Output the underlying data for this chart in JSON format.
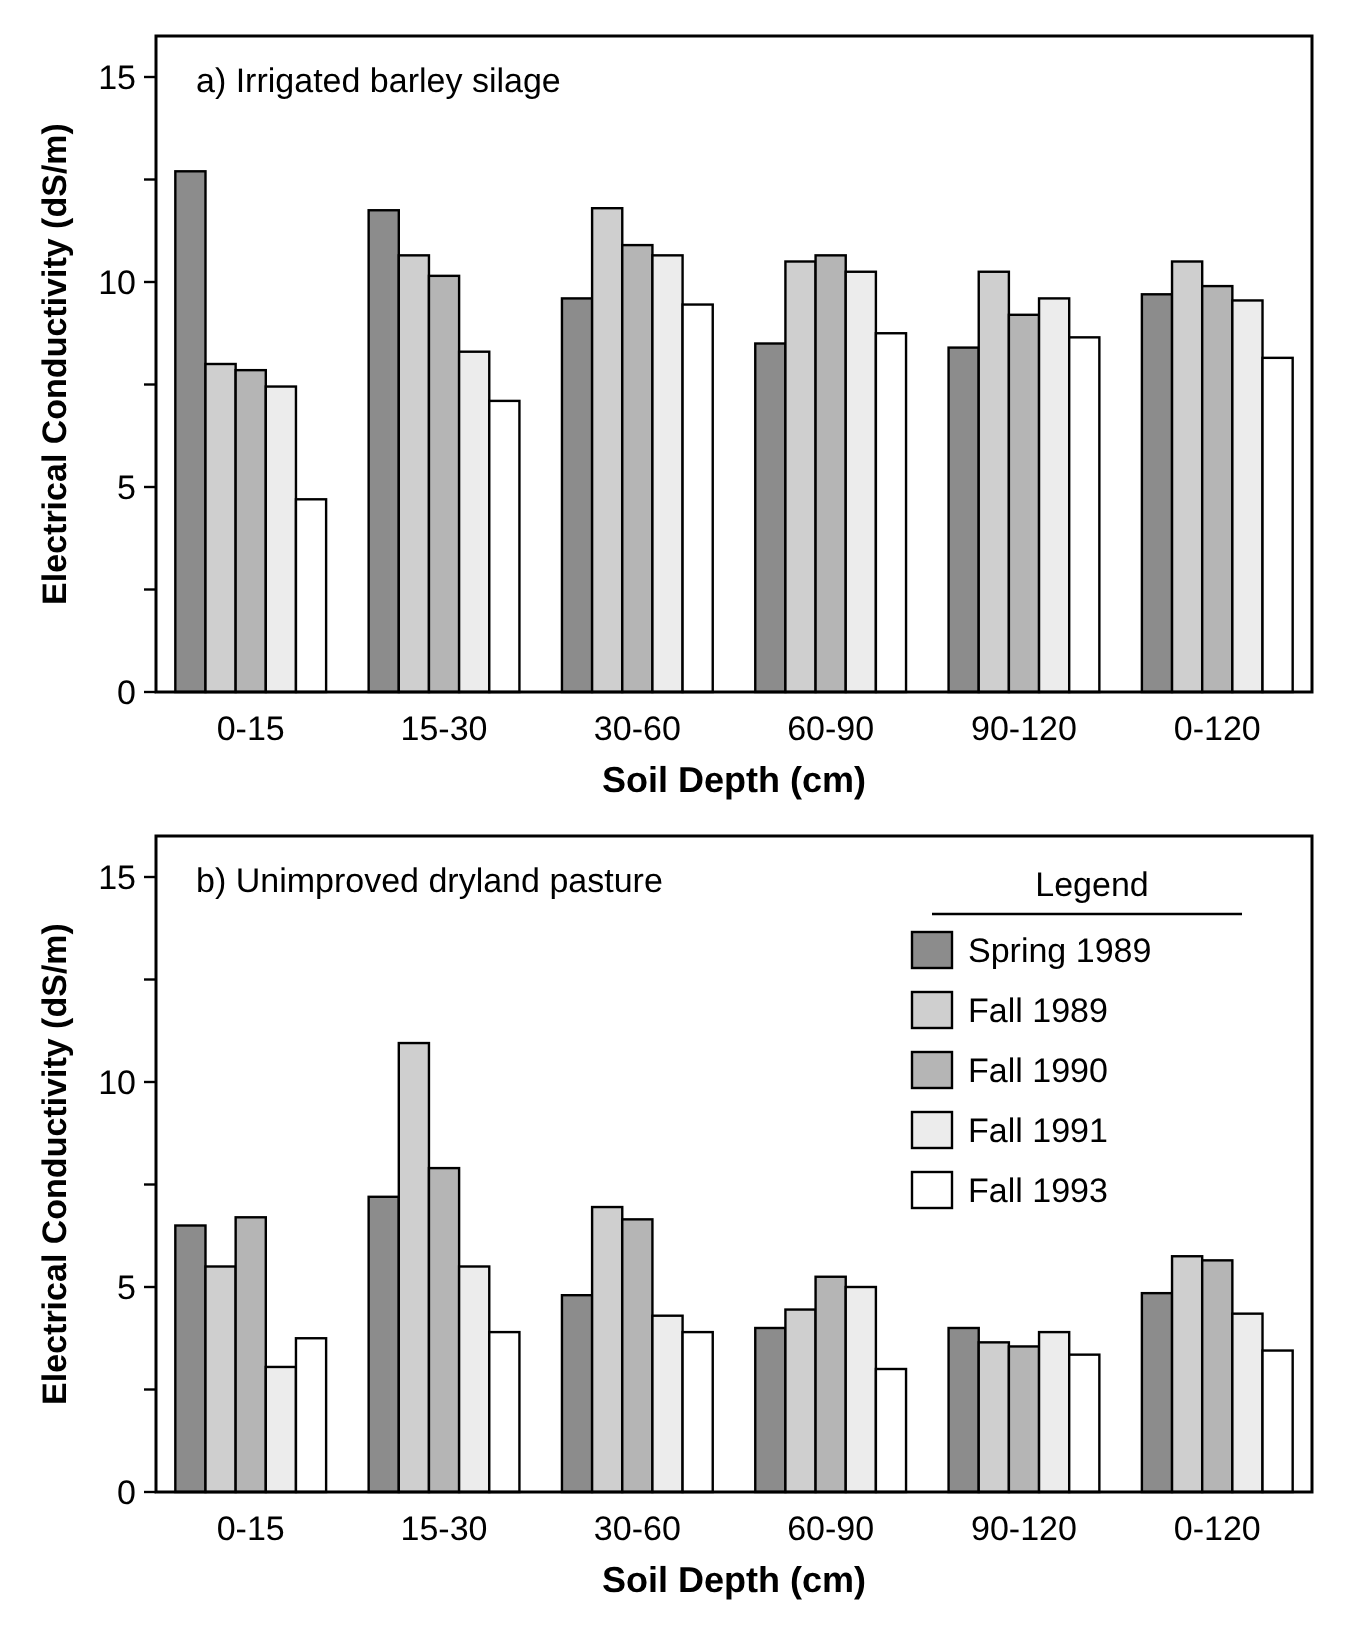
{
  "chart_data": [
    {
      "type": "bar",
      "title": "a) Irrigated barley silage",
      "xlabel": "Soil Depth (cm)",
      "ylabel": "Electrical Conductivity (dS/m)",
      "categories": [
        "0-15",
        "15-30",
        "30-60",
        "60-90",
        "90-120",
        "0-120"
      ],
      "ylim": [
        0,
        16
      ],
      "yticks": [
        0,
        {
          "value": 2.5,
          "label": null
        },
        5,
        {
          "value": 7.5,
          "label": null
        },
        10,
        {
          "value": 12.5,
          "label": null
        },
        15
      ],
      "grid": false,
      "legend": false,
      "series": [
        {
          "color": "#8c8c8c",
          "values": [
            12.7,
            11.75,
            9.6,
            8.5,
            8.4,
            9.7
          ]
        },
        {
          "color": "#cfcfcf",
          "values": [
            8.0,
            10.65,
            11.8,
            10.5,
            10.25,
            10.5
          ]
        },
        {
          "color": "#b5b5b5",
          "values": [
            7.85,
            10.15,
            10.9,
            10.65,
            9.2,
            9.9
          ]
        },
        {
          "color": "#ececec",
          "values": [
            7.45,
            8.3,
            10.65,
            10.25,
            9.6,
            9.55
          ]
        },
        {
          "color": "#ffffff",
          "values": [
            4.7,
            7.1,
            9.45,
            8.75,
            8.65,
            8.15
          ]
        }
      ]
    },
    {
      "type": "bar",
      "title": "b) Unimproved dryland pasture",
      "xlabel": "Soil Depth (cm)",
      "ylabel": "Electrical Conductivity (dS/m)",
      "legend_title": "Legend",
      "categories": [
        "0-15",
        "15-30",
        "30-60",
        "60-90",
        "90-120",
        "0-120"
      ],
      "ylim": [
        0,
        16
      ],
      "yticks": [
        0,
        {
          "value": 2.5,
          "label": null
        },
        5,
        {
          "value": 7.5,
          "label": null
        },
        10,
        {
          "value": 12.5,
          "label": null
        },
        15
      ],
      "grid": false,
      "legend": "top right",
      "series": [
        {
          "name": "Spring 1989",
          "color": "#8c8c8c",
          "values": [
            6.5,
            7.2,
            4.8,
            4.0,
            4.0,
            4.85
          ]
        },
        {
          "name": "Fall 1989",
          "color": "#cfcfcf",
          "values": [
            5.5,
            10.95,
            6.95,
            4.45,
            3.65,
            5.75
          ]
        },
        {
          "name": "Fall 1990",
          "color": "#b5b5b5",
          "values": [
            6.7,
            7.9,
            6.65,
            5.25,
            3.55,
            5.65
          ]
        },
        {
          "name": "Fall 1991",
          "color": "#ececec",
          "values": [
            3.05,
            5.5,
            4.3,
            5.0,
            3.9,
            4.35
          ]
        },
        {
          "name": "Fall 1993",
          "color": "#ffffff",
          "values": [
            3.75,
            3.9,
            3.9,
            3.0,
            3.35,
            3.45
          ]
        }
      ]
    }
  ]
}
